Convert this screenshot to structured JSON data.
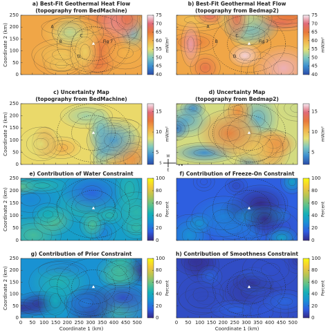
{
  "chart_data": [
    {
      "type": "contour",
      "title": [
        "a) Best-Fit Geothermal Heat Flow",
        "(topography from BedMachine)"
      ],
      "ylabel": "Coordinate 2 (km)",
      "xlim": [
        0,
        520
      ],
      "ylim": [
        0,
        250
      ],
      "xticks": [
        0,
        50,
        100,
        150,
        200,
        250,
        300,
        350,
        400,
        450,
        500
      ],
      "yticks": [
        0,
        50,
        100,
        150,
        200,
        250
      ],
      "clim": [
        40,
        75
      ],
      "cticks": [
        40,
        45,
        50,
        55,
        60,
        65,
        70,
        75
      ],
      "colorbar_label": "mW/m²",
      "colors": [
        "#2b4ca8",
        "#3d8fd0",
        "#7ec8c0",
        "#e8e070",
        "#f2b24a",
        "#e8783a",
        "#e06a78",
        "#f6e8f0"
      ],
      "annotations": [
        "A",
        "B",
        "C",
        "D",
        "Fig 7"
      ]
    },
    {
      "type": "contour",
      "title": [
        "b) Best-Fit Geothermal Heat Flow",
        "(topography from Bedmap2)"
      ],
      "xlim": [
        0,
        520
      ],
      "ylim": [
        0,
        250
      ],
      "xticks": [
        0,
        50,
        100,
        150,
        200,
        250,
        300,
        350,
        400,
        450,
        500
      ],
      "yticks": [
        0,
        50,
        100,
        150,
        200,
        250
      ],
      "clim": [
        40,
        75
      ],
      "cticks": [
        40,
        45,
        50,
        55,
        60,
        65,
        70,
        75
      ],
      "colorbar_label": "mW/m²",
      "colors": [
        "#2b4ca8",
        "#3d8fd0",
        "#7ec8c0",
        "#e8e070",
        "#f2b24a",
        "#e8783a",
        "#e06a78",
        "#f6e8f0"
      ],
      "annotations": [
        "A",
        "B",
        "C",
        "D",
        "Fig 7"
      ]
    },
    {
      "type": "contour",
      "title": [
        "c) Uncertainty Map",
        "(topography from BedMachine)"
      ],
      "ylabel": "Coordinate 2 (km)",
      "xlim": [
        0,
        520
      ],
      "ylim": [
        0,
        250
      ],
      "xticks": [
        0,
        50,
        100,
        150,
        200,
        250,
        300,
        350,
        400,
        450,
        500
      ],
      "yticks": [
        0,
        50,
        100,
        150,
        200,
        250
      ],
      "clim": [
        2,
        17
      ],
      "cticks": [
        5,
        10,
        15
      ],
      "colorbar_label": "mW/m²",
      "colors": [
        "#2b4ca8",
        "#3d8fd0",
        "#7ec8c0",
        "#e8e070",
        "#f2b24a",
        "#e8783a",
        "#e06a78",
        "#f6e8f0"
      ]
    },
    {
      "type": "contour",
      "title": [
        "d) Uncertainty Map",
        "(topography from Bedmap2)"
      ],
      "xlim": [
        0,
        520
      ],
      "ylim": [
        0,
        250
      ],
      "xticks": [
        0,
        50,
        100,
        150,
        200,
        250,
        300,
        350,
        400,
        450,
        500
      ],
      "yticks": [
        0,
        50,
        100,
        150,
        200,
        250
      ],
      "clim": [
        2,
        17
      ],
      "cticks": [
        5,
        10,
        15
      ],
      "colorbar_label": "mW/m²",
      "colors": [
        "#2b4ca8",
        "#3d8fd0",
        "#7ec8c0",
        "#e8e070",
        "#f2b24a",
        "#e8783a",
        "#e06a78",
        "#f6e8f0"
      ]
    },
    {
      "type": "contour",
      "title": [
        "e) Contribution of Water Constraint"
      ],
      "ylabel": "Coordinate 2 (km)",
      "xlim": [
        0,
        520
      ],
      "ylim": [
        0,
        250
      ],
      "xticks": [
        0,
        50,
        100,
        150,
        200,
        250,
        300,
        350,
        400,
        450,
        500
      ],
      "yticks": [
        0,
        50,
        100,
        150,
        200,
        250
      ],
      "clim": [
        0,
        100
      ],
      "cticks": [
        0,
        20,
        40,
        60,
        80,
        100
      ],
      "colorbar_label": "Percent",
      "colors": [
        "#352a87",
        "#2f5ce0",
        "#1a8fd6",
        "#14b0b8",
        "#5fc28a",
        "#b4c455",
        "#f3c83a",
        "#f9fb0e"
      ]
    },
    {
      "type": "contour",
      "title": [
        "f) Contribution of Freeze-On Constraint"
      ],
      "xlim": [
        0,
        520
      ],
      "ylim": [
        0,
        250
      ],
      "xticks": [
        0,
        50,
        100,
        150,
        200,
        250,
        300,
        350,
        400,
        450,
        500
      ],
      "yticks": [
        0,
        50,
        100,
        150,
        200,
        250
      ],
      "clim": [
        0,
        100
      ],
      "cticks": [
        0,
        20,
        40,
        60,
        80,
        100
      ],
      "colorbar_label": "Percent",
      "colors": [
        "#352a87",
        "#2f5ce0",
        "#1a8fd6",
        "#14b0b8",
        "#5fc28a",
        "#b4c455",
        "#f3c83a",
        "#f9fb0e"
      ]
    },
    {
      "type": "contour",
      "title": [
        "g) Contribution of Prior Constraint"
      ],
      "ylabel": "Coordinate 2 (km)",
      "xlabel": "Coordinate 1 (km)",
      "xlim": [
        0,
        520
      ],
      "ylim": [
        0,
        250
      ],
      "xticks": [
        0,
        50,
        100,
        150,
        200,
        250,
        300,
        350,
        400,
        450,
        500
      ],
      "yticks": [
        0,
        50,
        100,
        150,
        200,
        250
      ],
      "clim": [
        0,
        100
      ],
      "cticks": [
        0,
        20,
        40,
        60,
        80,
        100
      ],
      "colorbar_label": "Percent",
      "colors": [
        "#352a87",
        "#2f5ce0",
        "#1a8fd6",
        "#14b0b8",
        "#5fc28a",
        "#b4c455",
        "#f3c83a",
        "#f9fb0e"
      ]
    },
    {
      "type": "contour",
      "title": [
        "h) Contribution of Smoothness Constraint"
      ],
      "xlabel": "Coordinate 1 (km)",
      "xlim": [
        0,
        520
      ],
      "ylim": [
        0,
        250
      ],
      "xticks": [
        0,
        50,
        100,
        150,
        200,
        250,
        300,
        350,
        400,
        450,
        500
      ],
      "yticks": [
        0,
        50,
        100,
        150,
        200,
        250
      ],
      "clim": [
        0,
        100
      ],
      "cticks": [
        0,
        20,
        40,
        60,
        80,
        100
      ],
      "colorbar_label": "Percent",
      "colors": [
        "#352a87",
        "#2f5ce0",
        "#1a8fd6",
        "#14b0b8",
        "#5fc28a",
        "#b4c455",
        "#f3c83a",
        "#f9fb0e"
      ]
    }
  ],
  "compass": [
    "W",
    "S",
    "E",
    "N"
  ]
}
